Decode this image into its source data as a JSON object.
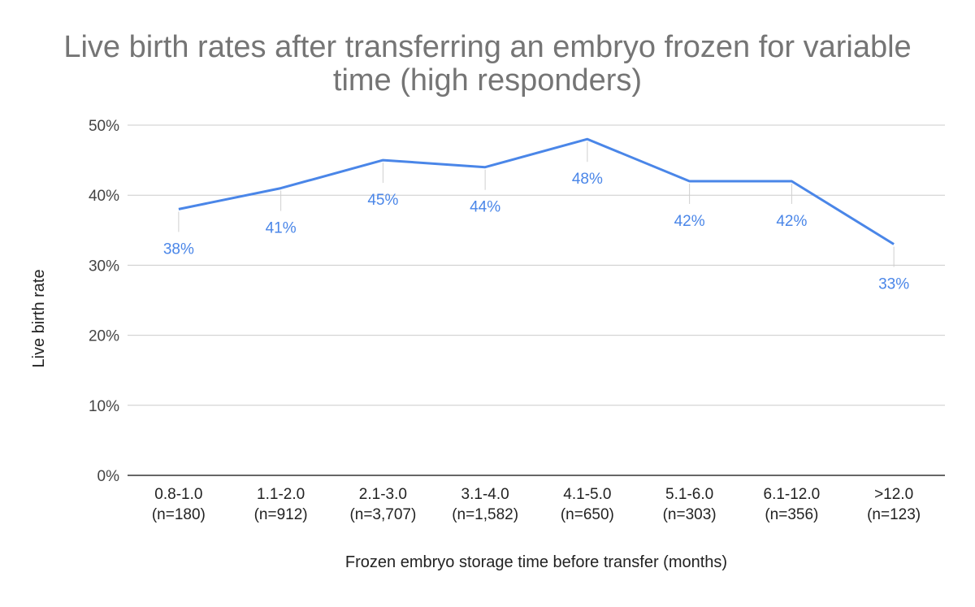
{
  "chart_data": {
    "type": "line",
    "title_lines": [
      "Live birth rates after transferring an embryo frozen for variable",
      "time (high responders)"
    ],
    "xlabel": "Frozen embryo storage time before transfer (months)",
    "ylabel": "Live birth rate",
    "ylim": [
      0,
      50
    ],
    "yticks": [
      0,
      10,
      20,
      30,
      40,
      50
    ],
    "ytick_labels": [
      "0%",
      "10%",
      "20%",
      "30%",
      "40%",
      "50%"
    ],
    "grid": true,
    "legend": "none",
    "categories": [
      {
        "range": "0.8-1.0",
        "n": "(n=180)"
      },
      {
        "range": "1.1-2.0",
        "n": "(n=912)"
      },
      {
        "range": "2.1-3.0",
        "n": "(n=3,707)"
      },
      {
        "range": "3.1-4.0",
        "n": "(n=1,582)"
      },
      {
        "range": "4.1-5.0",
        "n": "(n=650)"
      },
      {
        "range": "5.1-6.0",
        "n": "(n=303)"
      },
      {
        "range": "6.1-12.0",
        "n": "(n=356)"
      },
      {
        "range": ">12.0",
        "n": "(n=123)"
      }
    ],
    "series": [
      {
        "values": [
          38,
          41,
          45,
          44,
          48,
          42,
          42,
          33
        ],
        "labels": [
          "38%",
          "41%",
          "45%",
          "44%",
          "48%",
          "42%",
          "42%",
          "33%"
        ],
        "color": "#4a86e8"
      }
    ]
  }
}
